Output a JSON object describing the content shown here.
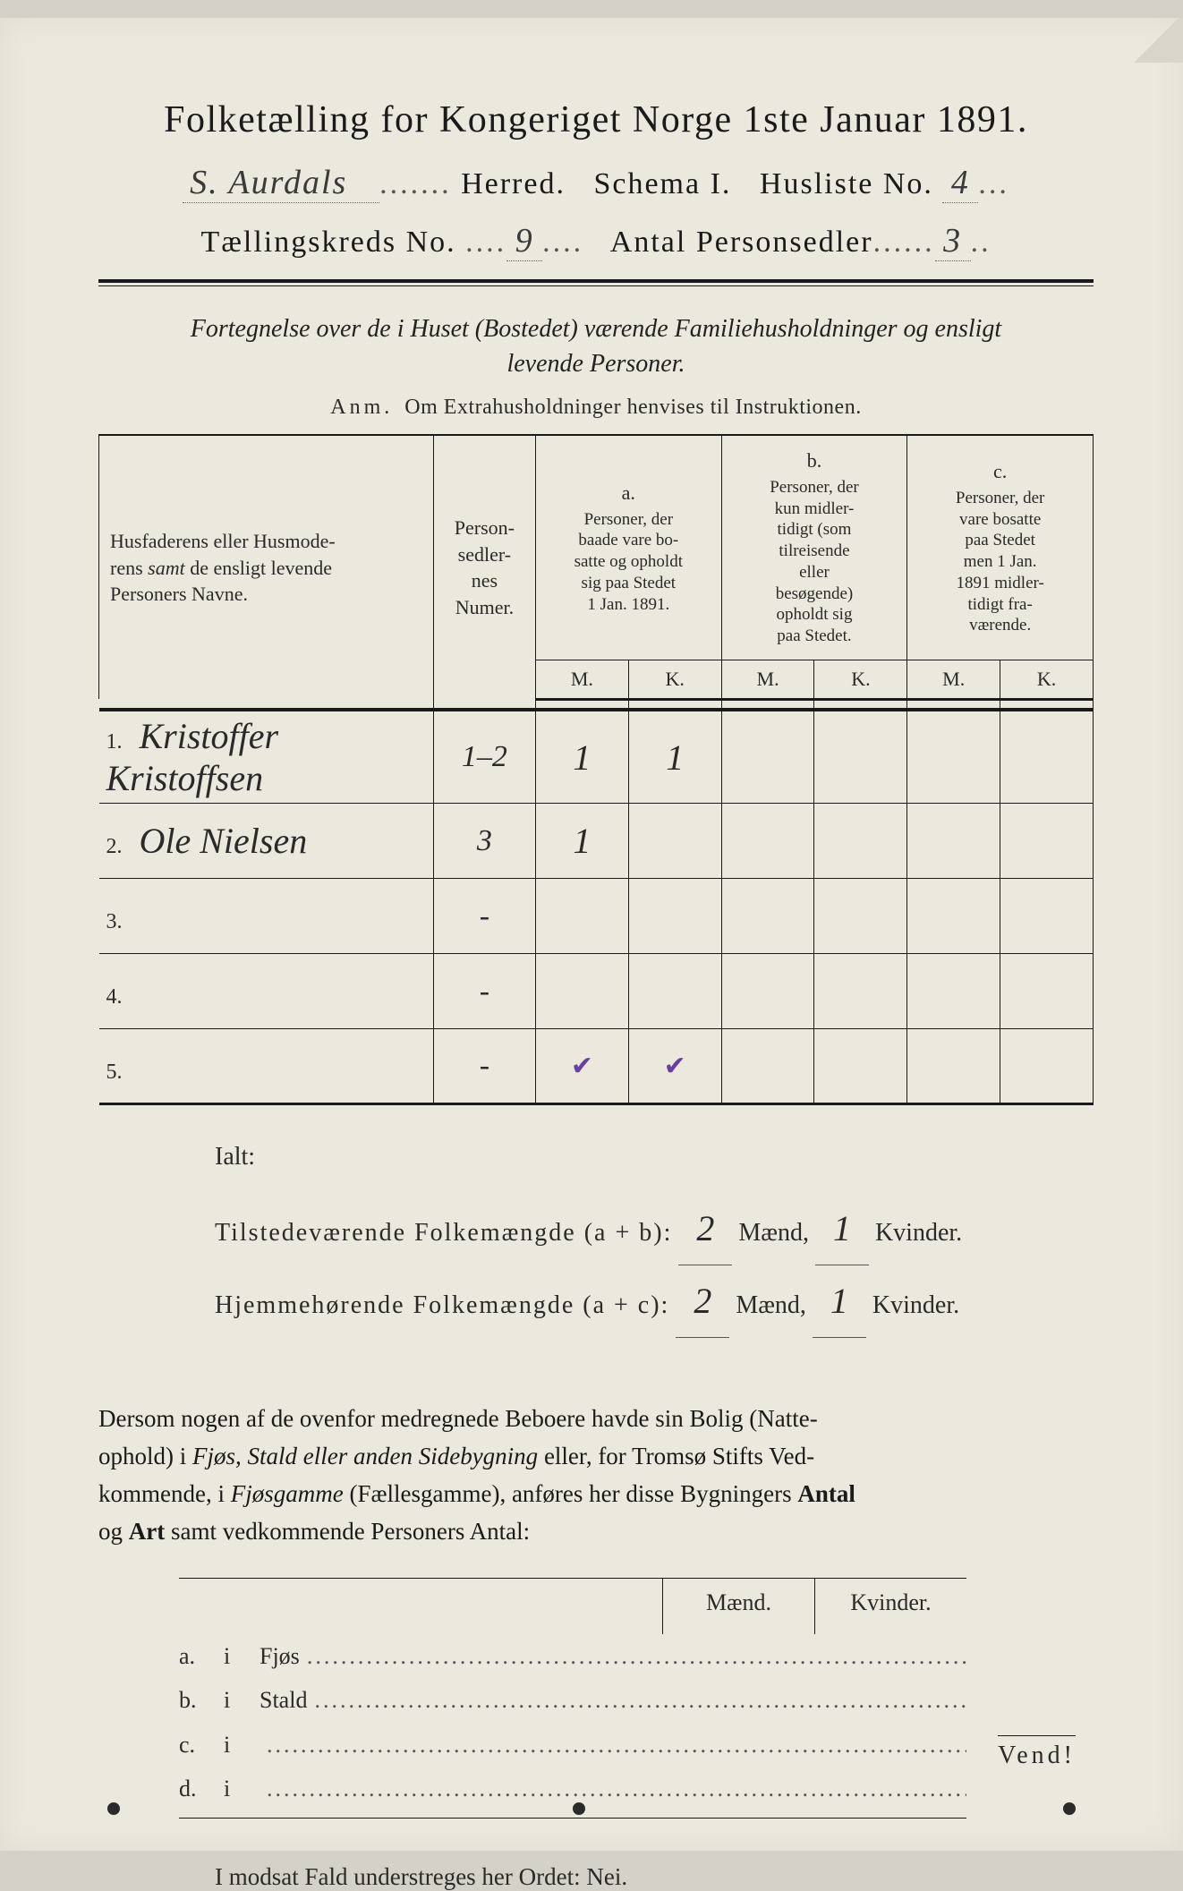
{
  "colors": {
    "paper": "#ebe8dd",
    "ink": "#1a1a1a",
    "handwriting": "#2a2a2a",
    "purple_mark": "#6b3fa0",
    "dotted": "#555555"
  },
  "typography": {
    "title_fontsize_pt": 32,
    "body_fontsize_pt": 20,
    "handwritten_family": "cursive"
  },
  "header": {
    "title": "Folketælling for Kongeriget Norge 1ste Januar 1891.",
    "herred_handwritten": "S. Aurdals",
    "herred_label": "Herred.",
    "schema_label": "Schema I.",
    "husliste_label": "Husliste No.",
    "husliste_no": "4",
    "taellingskreds_label": "Tællingskreds No.",
    "taellingskreds_no": "9",
    "antal_label": "Antal Personsedler",
    "antal_no": "3"
  },
  "subtitle": {
    "line1": "Fortegnelse over de i Huset (Bostedet) værende Familiehusholdninger og ensligt",
    "line2": "levende Personer.",
    "anm_prefix": "Anm.",
    "anm_text": "Om Extrahusholdninger henvises til Instruktionen."
  },
  "table": {
    "col_name": "Husfaderens eller Husmoderens samt de ensligt levende Personers Navne.",
    "col_num": "Personsedlernes Numer.",
    "col_a_label": "a.",
    "col_a_text": "Personer, der baade vare bosatte og opholdt sig paa Stedet 1 Jan. 1891.",
    "col_b_label": "b.",
    "col_b_text": "Personer, der kun midlertidigt (som tilreisende eller besøgende) opholdt sig paa Stedet.",
    "col_c_label": "c.",
    "col_c_text": "Personer, der vare bosatte paa Stedet men 1 Jan. 1891 midlertidigt fraværende.",
    "m": "M.",
    "k": "K.",
    "rows": [
      {
        "n": "1.",
        "name": "Kristoffer Kristoffsen",
        "num": "1–2",
        "aM": "1",
        "aK": "1",
        "bM": "",
        "bK": "",
        "cM": "",
        "cK": ""
      },
      {
        "n": "2.",
        "name": "Ole Nielsen",
        "num": "3",
        "aM": "1",
        "aK": "",
        "bM": "",
        "bK": "",
        "cM": "",
        "cK": ""
      },
      {
        "n": "3.",
        "name": "",
        "num": "-",
        "aM": "",
        "aK": "",
        "bM": "",
        "bK": "",
        "cM": "",
        "cK": ""
      },
      {
        "n": "4.",
        "name": "",
        "num": "-",
        "aM": "",
        "aK": "",
        "bM": "",
        "bK": "",
        "cM": "",
        "cK": ""
      },
      {
        "n": "5.",
        "name": "",
        "num": "-",
        "aM": "✔",
        "aK": "✔",
        "bM": "",
        "bK": "",
        "cM": "",
        "cK": "",
        "purple": true
      }
    ]
  },
  "ialt": {
    "label": "Ialt:",
    "line1_pre": "Tilstedeværende Folkemængde (a + b):",
    "line2_pre": "Hjemmehørende Folkemængde (a + c):",
    "maend": "Mænd,",
    "kvinder": "Kvinder.",
    "l1_m": "2",
    "l1_k": "1",
    "l2_m": "2",
    "l2_k": "1"
  },
  "para": "Dersom nogen af de ovenfor medregnede Beboere havde sin Bolig (Natteophold) i Fjøs, Stald eller anden Sidebygning eller, for Tromsø Stifts Vedkommende, i Fjøsgamme (Fællesgamme), anføres her disse Bygningers Antal og Art samt vedkommende Personers Antal:",
  "subtable": {
    "h1": "Mænd.",
    "h2": "Kvinder.",
    "rows": [
      {
        "let": "a.",
        "i": "i",
        "label": "Fjøs"
      },
      {
        "let": "b.",
        "i": "i",
        "label": "Stald"
      },
      {
        "let": "c.",
        "i": "i",
        "label": ""
      },
      {
        "let": "d.",
        "i": "i",
        "label": ""
      }
    ]
  },
  "footer": {
    "line": "I modsat Fald understreges her Ordet: Nei.",
    "vend": "Vend!"
  }
}
